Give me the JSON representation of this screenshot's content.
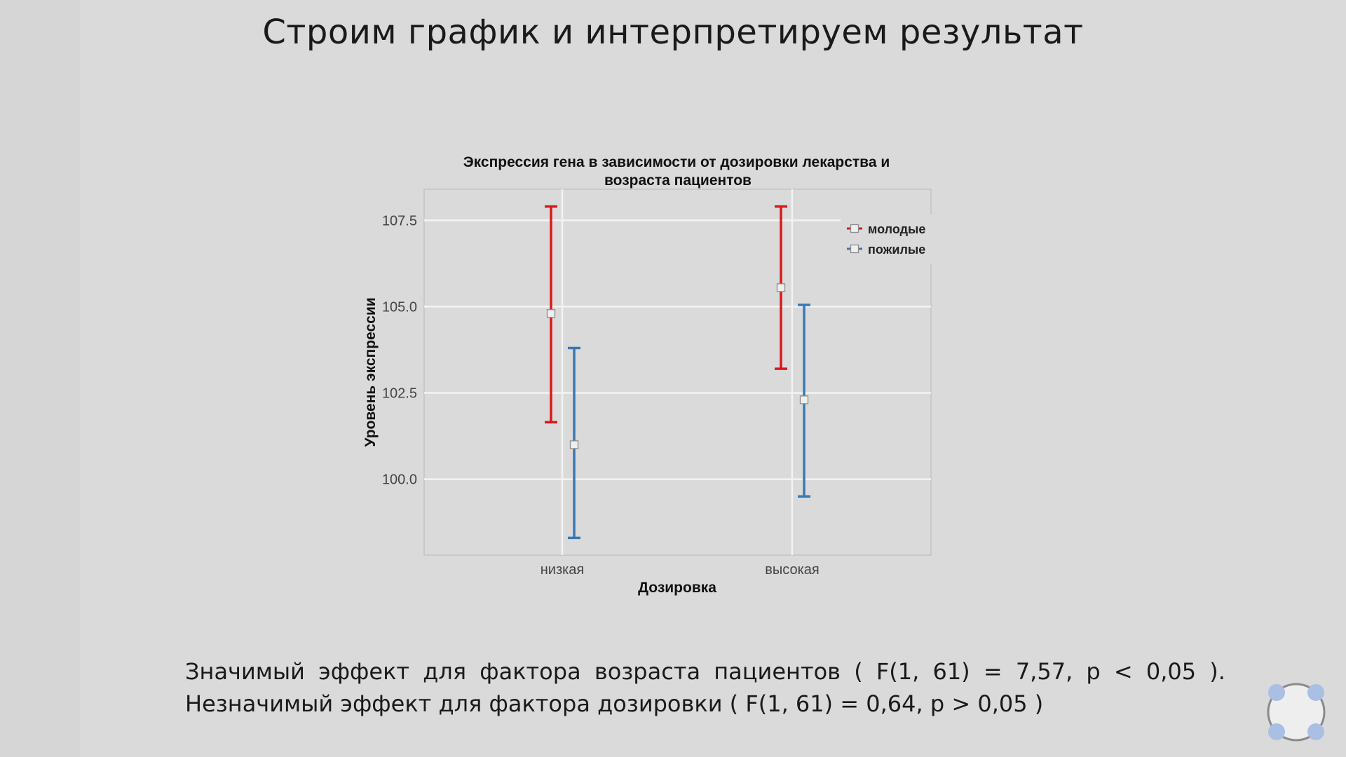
{
  "slide": {
    "title": "Строим график и интерпретируем результат",
    "result_line_1": "Значимый эффект для фактора возраста пациентов ( F(1, 61) = 7,57, p < 0,05 ).",
    "result_line_2": "Незначимый эффект для фактора дозировки ( F(1, 61) = 0,64, p > 0,05 )"
  },
  "chart_data": {
    "type": "scatter",
    "title": "Экспрессия гена в зависимости от дозировки лекарства и",
    "title_line2": "возраста пациентов",
    "xlabel": "Дозировка",
    "ylabel": "Уровень экспрессии",
    "categories": [
      "низкая",
      "высокая"
    ],
    "yticks": [
      "100.0",
      "102.5",
      "105.0",
      "107.5"
    ],
    "ytick_values": [
      100.0,
      102.5,
      105.0,
      107.5
    ],
    "ylim": [
      97.8,
      108.4
    ],
    "grid": true,
    "legend_position": "top-right",
    "series": [
      {
        "name": "молодые",
        "color": "#d7191c",
        "mean": [
          104.8,
          105.55
        ],
        "lower": [
          101.65,
          103.2
        ],
        "upper": [
          107.9,
          107.9
        ]
      },
      {
        "name": "пожилые",
        "color": "#3a78b4",
        "mean": [
          101.0,
          102.3
        ],
        "lower": [
          98.3,
          99.5
        ],
        "upper": [
          103.8,
          105.05
        ]
      }
    ]
  },
  "icons": {
    "player_control": "fullscreen-control-icon"
  }
}
